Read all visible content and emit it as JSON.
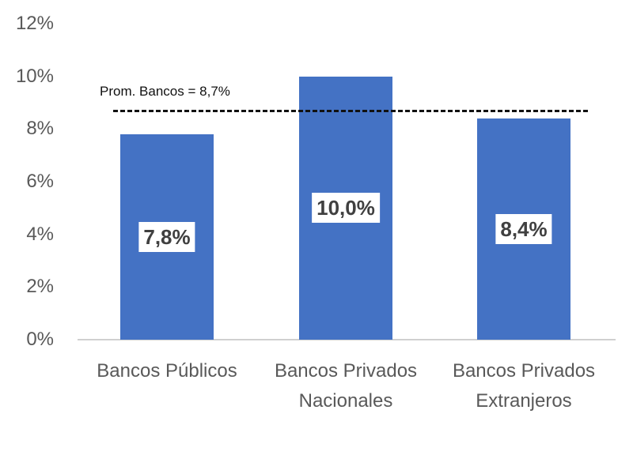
{
  "chart_data": {
    "type": "bar",
    "title": "",
    "xlabel": "",
    "ylabel": "",
    "categories": [
      "Bancos Públicos",
      "Bancos Privados Nacionales",
      "Bancos Privados Extranjeros"
    ],
    "category_lines": [
      [
        "Bancos Públicos"
      ],
      [
        "Bancos Privados",
        "Nacionales"
      ],
      [
        "Bancos Privados",
        "Extranjeros"
      ]
    ],
    "values": [
      7.8,
      10.0,
      8.4
    ],
    "value_labels": [
      "7,8%",
      "10,0%",
      "8,4%"
    ],
    "ylim": [
      0,
      12
    ],
    "yticks": [
      "0%",
      "2%",
      "4%",
      "6%",
      "8%",
      "10%",
      "12%"
    ],
    "grid": false,
    "legend": null,
    "bar_color": "#4472c4",
    "reference_line": {
      "value": 8.7,
      "label": "Prom. Bancos = 8,7%",
      "style": "dashed",
      "color": "#111111"
    }
  }
}
